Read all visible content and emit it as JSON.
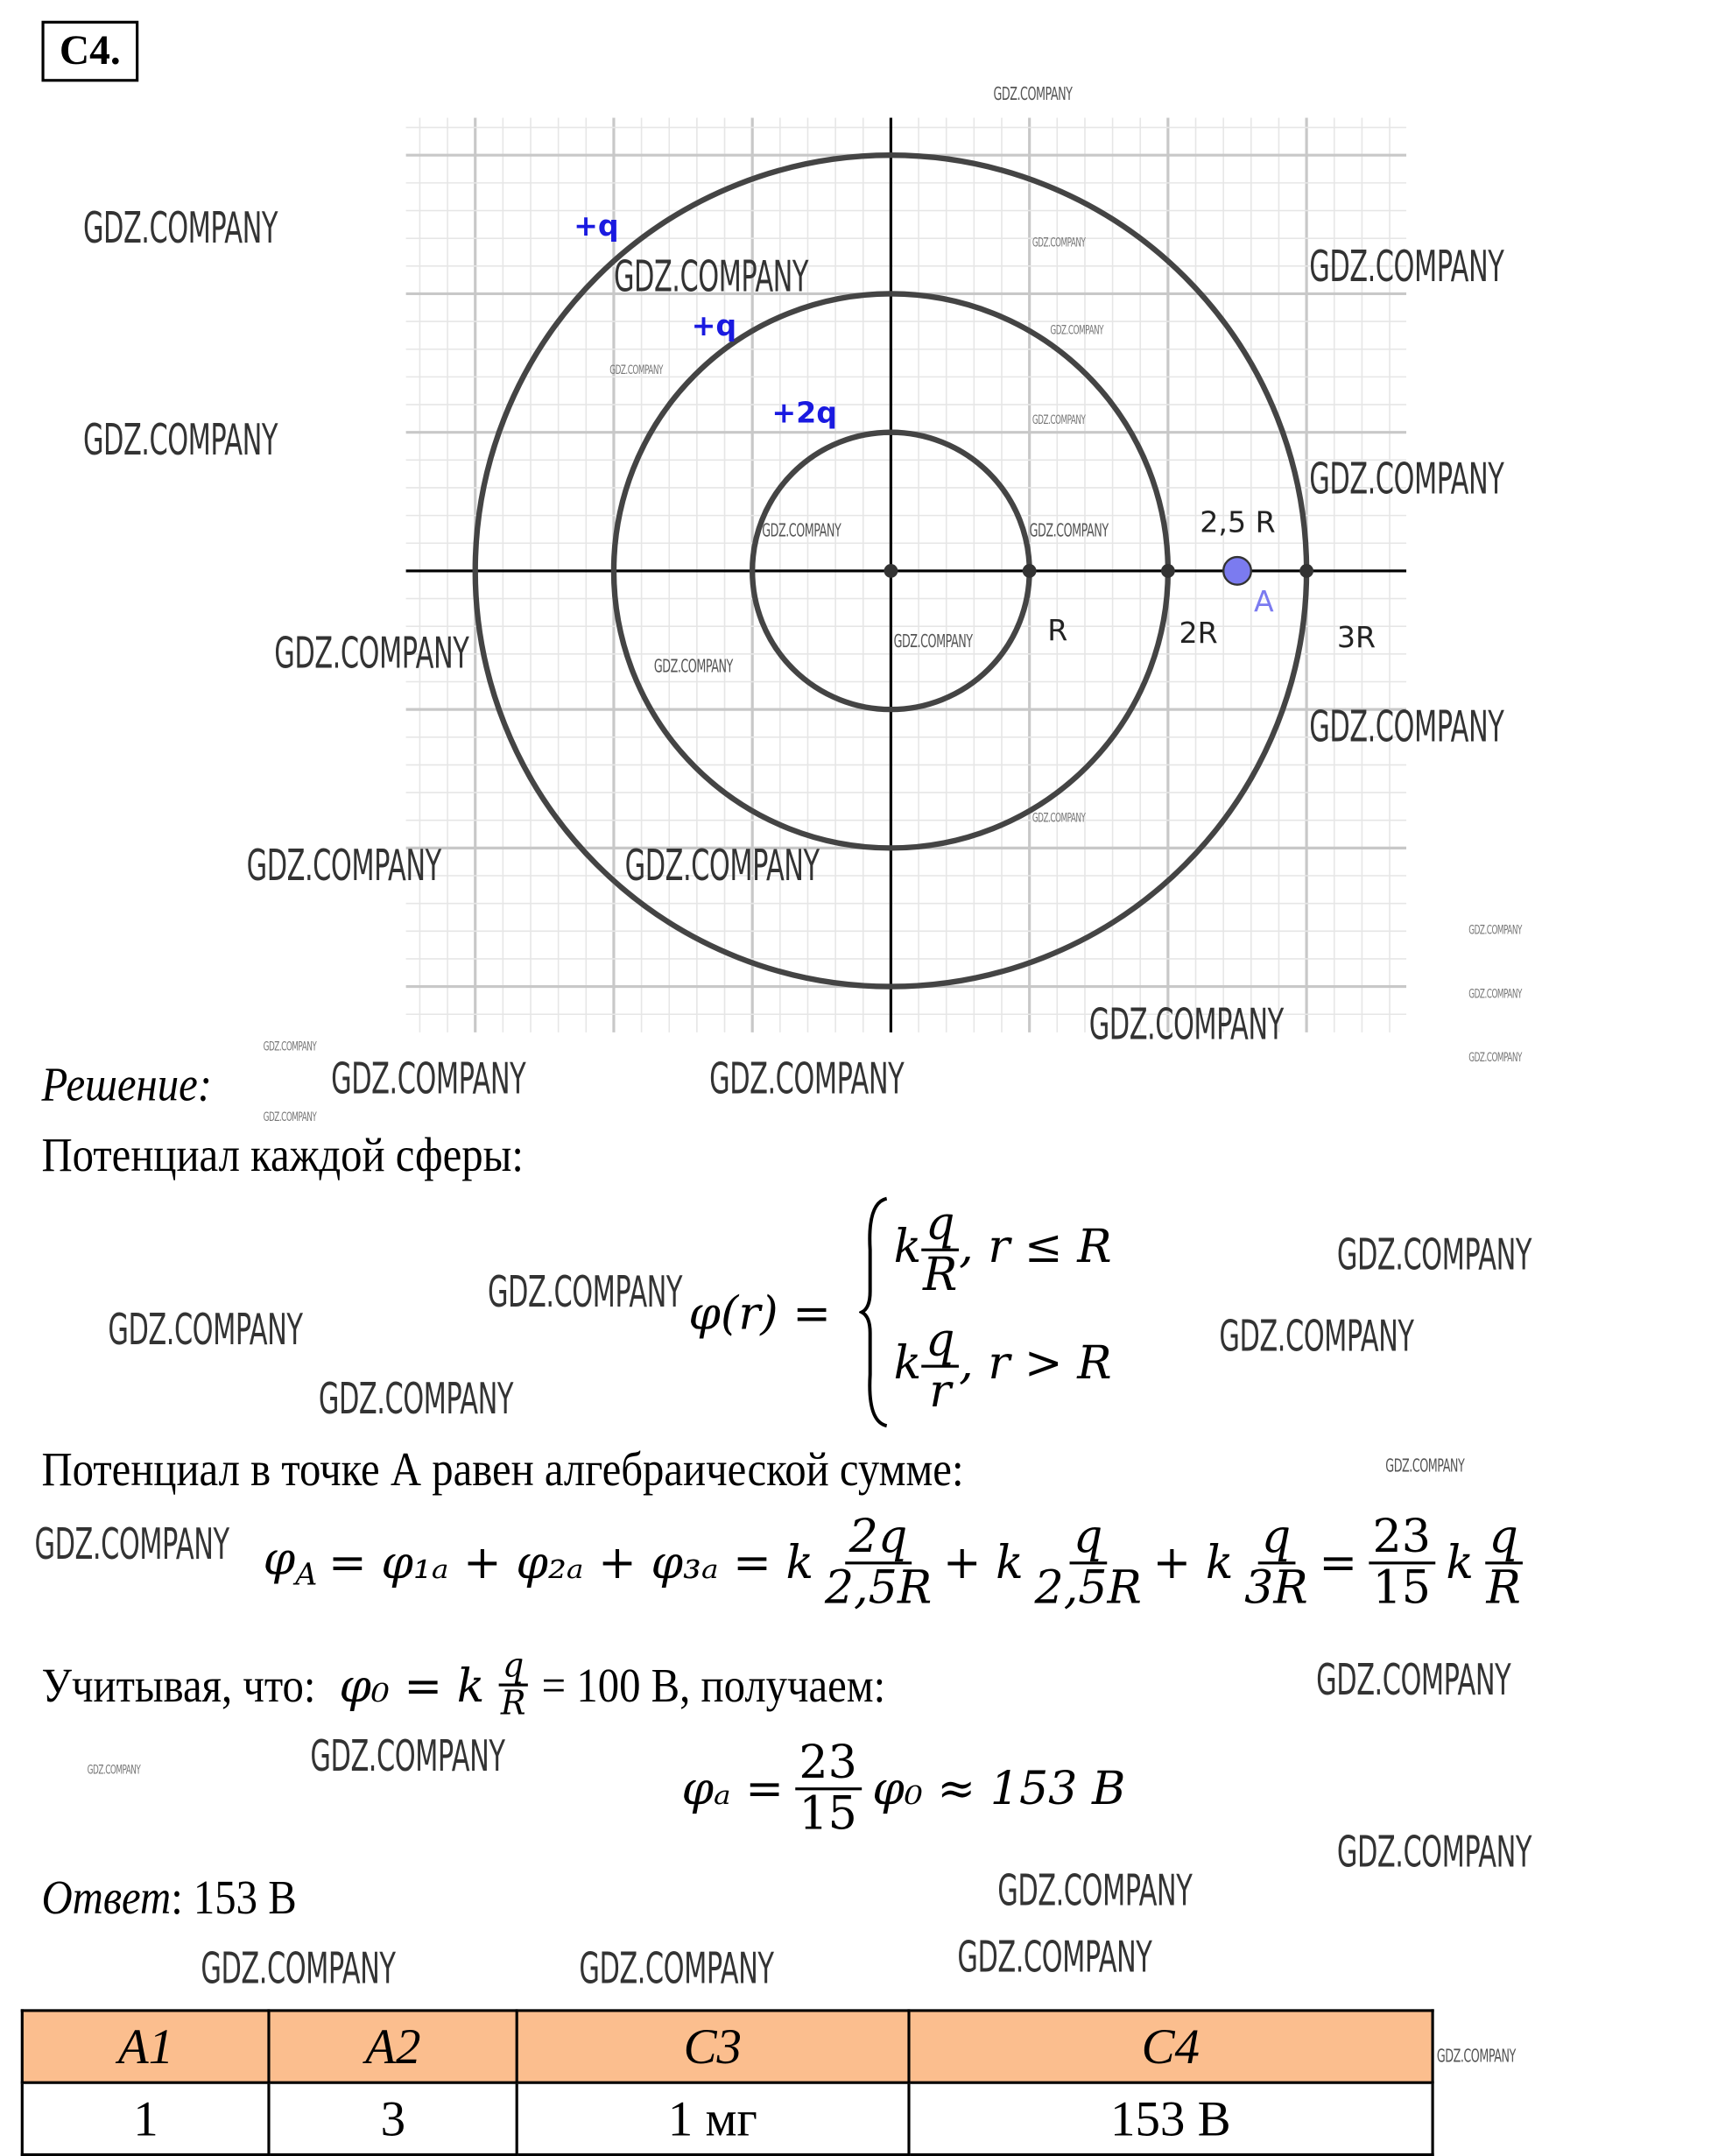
{
  "problem_label": "C4.",
  "diagram": {
    "charges": [
      "+q",
      "+q",
      "+2q"
    ],
    "point_label": "A",
    "point_position_label": "2,5 R",
    "radius_labels": [
      "R",
      "2R",
      "3R"
    ],
    "colors": {
      "charge_label": "#1a1ae0",
      "point": "#7b7bf0",
      "circle": "#444444",
      "grid_major": "#c8c8c8",
      "grid_minor": "#e6e6e6"
    }
  },
  "solution": {
    "heading": "Решение",
    "heading_colon": ":",
    "line1": "Потенциал каждой сферы:",
    "phi_r": "φ(r) =",
    "case1": {
      "k": "k",
      "num": "q",
      "den": "R",
      "cond": ", r ≤ R"
    },
    "case2": {
      "k": "k",
      "num": "q",
      "den": "r",
      "cond": ", r > R"
    },
    "line2": "Потенциал в точке А равен алгебраической сумме:",
    "sum": {
      "lhs": "φ",
      "lhs_sub": "A",
      "terms": "= φ₁ₐ + φ₂ₐ + φ₃ₐ = k",
      "f1_num": "2q",
      "f1_den": "2,5R",
      "plus_k1": "+ k",
      "f2_num": "q",
      "f2_den": "2,5R",
      "plus_k2": "+ k",
      "f3_num": "q",
      "f3_den": "3R",
      "eq": "=",
      "f4_num": "23",
      "f4_den": "15",
      "k": "k",
      "f5_num": "q",
      "f5_den": "R"
    },
    "line3_prefix": "Учитывая, что:",
    "line3_phi0": "φ₀ = k",
    "line3_num": "q",
    "line3_den": "R",
    "line3_suffix": "= 100 В, получаем:",
    "result": {
      "lhs": "φₐ =",
      "num": "23",
      "den": "15",
      "rhs": "φ₀ ≈ 153 В"
    },
    "answer_label": "Ответ",
    "answer_value": ": 153 В"
  },
  "table": {
    "headers": [
      "A1",
      "A2",
      "C3",
      "C4"
    ],
    "values": [
      "1",
      "3",
      "1 мг",
      "153 В"
    ],
    "header_color": "#fbbe8e"
  },
  "watermark": "GDZ.COMPANY"
}
